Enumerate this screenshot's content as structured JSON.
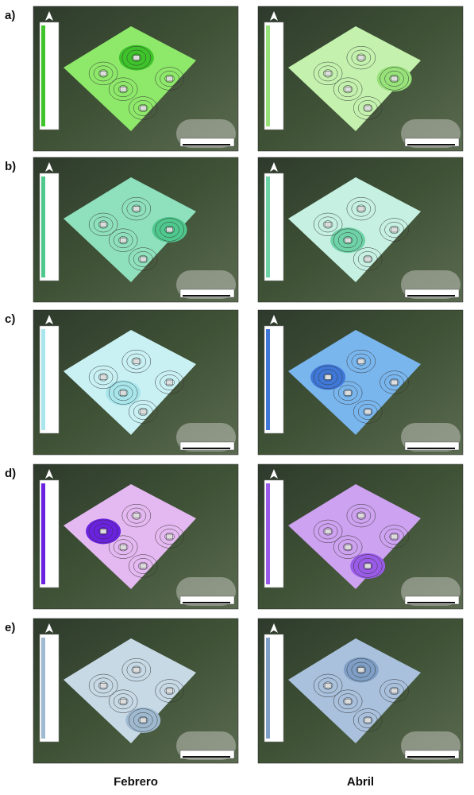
{
  "row_labels": [
    "a)",
    "b)",
    "c)",
    "d)",
    "e)"
  ],
  "column_labels": [
    "Febrero",
    "Abril"
  ]
}
